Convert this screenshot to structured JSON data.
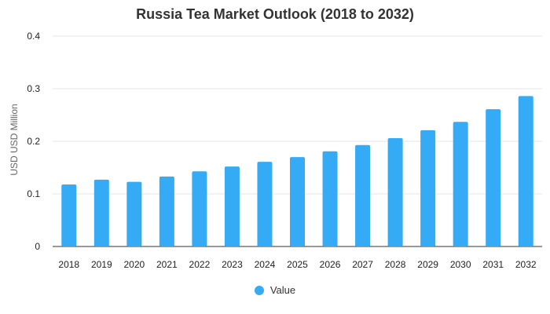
{
  "chart_data": {
    "type": "bar",
    "title": "Russia Tea Market Outlook (2018 to 2032)",
    "ylabel": "USD USD Million",
    "xlabel": "",
    "categories": [
      "2018",
      "2019",
      "2020",
      "2021",
      "2022",
      "2023",
      "2024",
      "2025",
      "2026",
      "2027",
      "2028",
      "2029",
      "2030",
      "2031",
      "2032"
    ],
    "series": [
      {
        "name": "Value",
        "values": [
          0.118,
          0.127,
          0.123,
          0.133,
          0.143,
          0.152,
          0.161,
          0.17,
          0.181,
          0.193,
          0.206,
          0.221,
          0.237,
          0.261,
          0.286
        ]
      }
    ],
    "ylim": [
      0,
      0.4
    ],
    "yticks": [
      "0",
      "0.1",
      "0.2",
      "0.3",
      "0.4"
    ],
    "grid": true,
    "legend_position": "bottom",
    "colors": {
      "bar": "#35aaf5",
      "grid": "#e6e6e6",
      "axis": "#333333"
    }
  }
}
